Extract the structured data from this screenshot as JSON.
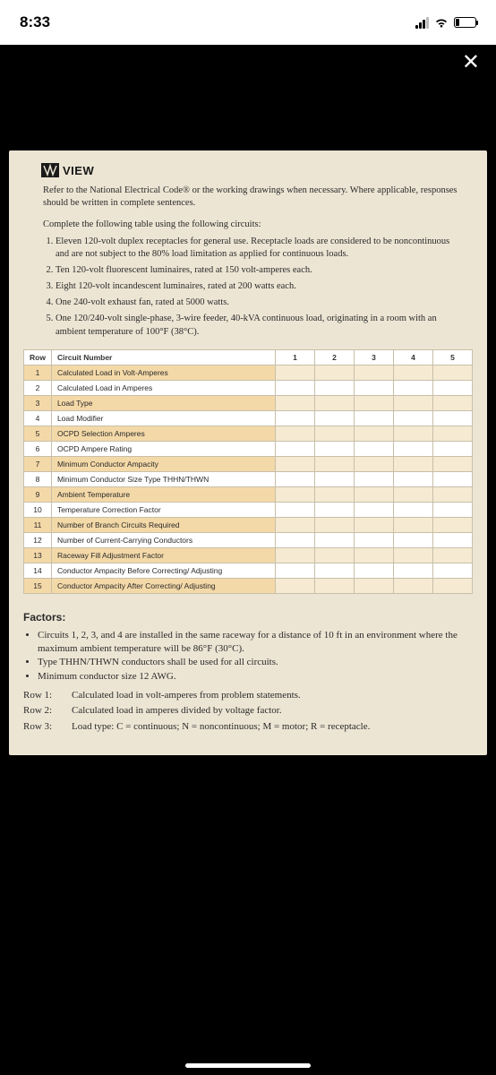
{
  "status": {
    "time": "8:33"
  },
  "doc": {
    "logo_text": "VIEW",
    "intro": "Refer to the National Electrical Code® or the working drawings when necessary. Where applicable, responses should be written in complete sentences.",
    "table_lead": "Complete the following table using the following circuits:",
    "circuits": [
      "Eleven 120-volt duplex receptacles for general use. Receptacle loads are considered to be noncontinuous and are not subject to the 80% load limitation as applied for continuous loads.",
      "Ten 120-volt fluorescent luminaires, rated at 150 volt-amperes each.",
      "Eight 120-volt incandescent luminaires, rated at 200 watts each.",
      "One 240-volt exhaust fan, rated at 5000 watts.",
      "One 120/240-volt single-phase, 3-wire feeder, 40-kVA continuous load, originating in a room with an ambient temperature of 100°F (38°C)."
    ],
    "table": {
      "header_row": "Row",
      "header_label": "Circuit Number",
      "cols": [
        "1",
        "2",
        "3",
        "4",
        "5"
      ],
      "rows": [
        {
          "n": "1",
          "label": "Calculated Load in Volt-Amperes"
        },
        {
          "n": "2",
          "label": "Calculated Load in Amperes"
        },
        {
          "n": "3",
          "label": "Load Type"
        },
        {
          "n": "4",
          "label": "Load Modifier"
        },
        {
          "n": "5",
          "label": "OCPD Selection Amperes"
        },
        {
          "n": "6",
          "label": "OCPD Ampere Rating"
        },
        {
          "n": "7",
          "label": "Minimum Conductor Ampacity"
        },
        {
          "n": "8",
          "label": "Minimum Conductor Size Type THHN/THWN"
        },
        {
          "n": "9",
          "label": "Ambient Temperature"
        },
        {
          "n": "10",
          "label": "Temperature Correction Factor"
        },
        {
          "n": "11",
          "label": "Number of Branch Circuits Required"
        },
        {
          "n": "12",
          "label": "Number of Current-Carrying Conductors"
        },
        {
          "n": "13",
          "label": "Raceway Fill Adjustment Factor"
        },
        {
          "n": "14",
          "label": "Conductor Ampacity Before Correcting/ Adjusting"
        },
        {
          "n": "15",
          "label": "Conductor Ampacity After Correcting/ Adjusting"
        }
      ]
    },
    "factors": {
      "title": "Factors:",
      "bullets": [
        "Circuits 1, 2, 3, and 4 are installed in the same raceway for a distance of 10 ft in an environment where the maximum ambient temperature will be 86°F (30°C).",
        "Type THHN/THWN conductors shall be used for all circuits.",
        "Minimum conductor size 12 AWG."
      ],
      "row_explain": [
        {
          "l": "Row 1:",
          "t": "Calculated load in volt-amperes from problem statements."
        },
        {
          "l": "Row 2:",
          "t": "Calculated load in amperes divided by voltage factor."
        },
        {
          "l": "Row 3:",
          "t": "Load type: C = continuous; N = noncontinuous; M = motor; R = receptacle."
        }
      ]
    }
  }
}
